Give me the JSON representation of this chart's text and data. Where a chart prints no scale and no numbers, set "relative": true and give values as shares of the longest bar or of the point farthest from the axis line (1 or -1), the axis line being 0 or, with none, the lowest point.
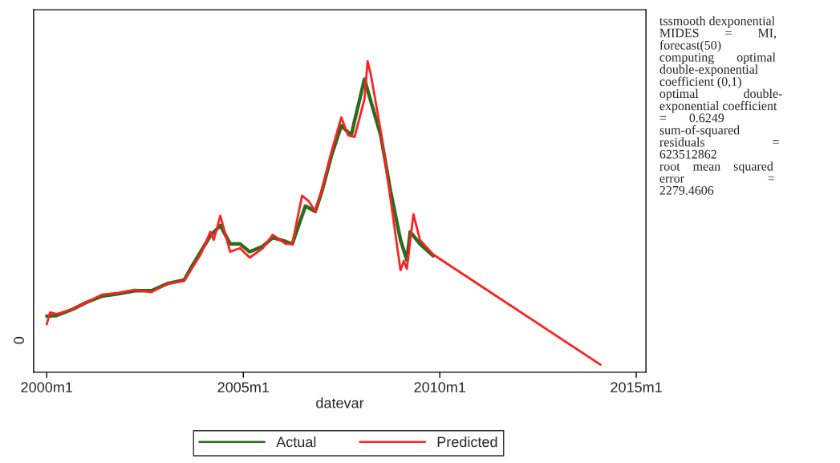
{
  "chart_data": {
    "type": "line",
    "relative": true,
    "xlabel": "datevar",
    "xlim": [
      "1999-09",
      "2015-04"
    ],
    "xticks": [
      {
        "value": "2000-01",
        "label": "2000m1"
      },
      {
        "value": "2005-01",
        "label": "2005m1"
      },
      {
        "value": "2010-01",
        "label": "2010m1"
      },
      {
        "value": "2015-01",
        "label": "2015m1"
      }
    ],
    "grid": false,
    "legend": "bottom",
    "marker": "none",
    "line_style": "solid",
    "annotations": [
      "0",
      "tssmooth dexponential\nMIDES        =        MI,\nforecast(50)\ncomputing       optimal\ndouble-exponential\ncoefficient (0,1)\noptimal              double-\nexponential coefficient\n=       0.6249\nsum-of-squared\nresiduals                     =\n623512862\nroot    mean    squared\nerror                          =\n2279.4606"
    ],
    "series": [
      {
        "name": "Actual",
        "color": "#2e6b1f",
        "x": [
          "2000-01",
          "2000-04",
          "2000-09",
          "2001-01",
          "2001-06",
          "2001-11",
          "2002-04",
          "2002-09",
          "2003-02",
          "2003-07",
          "2003-09",
          "2003-12",
          "2004-03",
          "2004-06",
          "2004-09",
          "2004-12",
          "2005-03",
          "2005-07",
          "2005-10",
          "2006-02",
          "2006-04",
          "2006-07",
          "2006-08",
          "2006-11",
          "2007-01",
          "2007-04",
          "2007-07",
          "2007-10",
          "2007-11",
          "2008-02",
          "2008-04",
          "2008-07",
          "2008-10",
          "2009-01",
          "2009-03",
          "2009-04",
          "2009-07",
          "2009-11"
        ],
        "values": [
          0.16,
          0.162,
          0.183,
          0.205,
          0.226,
          0.234,
          0.244,
          0.244,
          0.268,
          0.279,
          0.318,
          0.372,
          0.425,
          0.459,
          0.398,
          0.398,
          0.372,
          0.39,
          0.419,
          0.406,
          0.398,
          0.491,
          0.523,
          0.505,
          0.571,
          0.69,
          0.788,
          0.756,
          0.804,
          0.941,
          0.867,
          0.756,
          0.571,
          0.411,
          0.345,
          0.438,
          0.398,
          0.359
        ]
      },
      {
        "name": "Predicted",
        "color": "#ff2020",
        "x": [
          "2000-01",
          "2000-02",
          "2000-04",
          "2000-09",
          "2001-01",
          "2001-06",
          "2001-11",
          "2002-04",
          "2002-09",
          "2003-02",
          "2003-07",
          "2003-09",
          "2003-12",
          "2004-03",
          "2004-04",
          "2004-06",
          "2004-09",
          "2004-12",
          "2005-03",
          "2005-07",
          "2005-10",
          "2006-02",
          "2006-04",
          "2006-07",
          "2006-09",
          "2006-11",
          "2007-01",
          "2007-04",
          "2007-07",
          "2007-09",
          "2007-11",
          "2008-02",
          "2008-03",
          "2008-04",
          "2008-07",
          "2008-10",
          "2009-01",
          "2009-02",
          "2009-03",
          "2009-05",
          "2009-07",
          "2009-11",
          "2014-02"
        ],
        "values": [
          0.133,
          0.172,
          0.167,
          0.183,
          0.205,
          0.231,
          0.237,
          0.247,
          0.239,
          0.268,
          0.276,
          0.311,
          0.363,
          0.438,
          0.411,
          0.491,
          0.372,
          0.384,
          0.353,
          0.384,
          0.428,
          0.398,
          0.398,
          0.557,
          0.539,
          0.505,
          0.576,
          0.703,
          0.815,
          0.756,
          0.751,
          0.875,
          1.0,
          0.955,
          0.77,
          0.544,
          0.311,
          0.342,
          0.316,
          0.496,
          0.411,
          0.363,
          0
        ]
      }
    ]
  }
}
